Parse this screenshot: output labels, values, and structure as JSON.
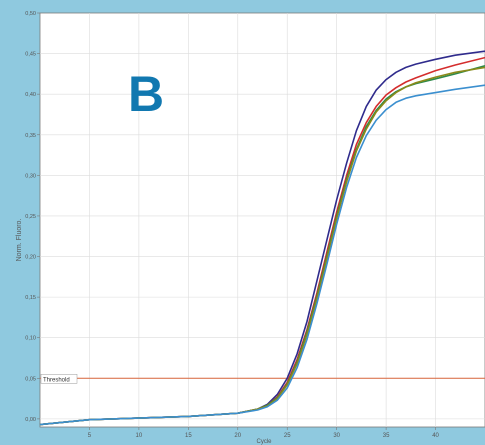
{
  "chart_data": {
    "type": "line",
    "panel_letter": "B",
    "title": "",
    "xlabel": "Cycle",
    "ylabel": "Norm. Fluoro.",
    "xlim": [
      0,
      45
    ],
    "ylim": [
      -0.01,
      0.5
    ],
    "x_ticks": [
      5,
      10,
      15,
      20,
      25,
      30,
      35,
      40
    ],
    "x_tick_labels": [
      "5",
      "10",
      "15",
      "20",
      "25",
      "30",
      "35",
      "40"
    ],
    "y_ticks": [
      0.0,
      0.05,
      0.1,
      0.15,
      0.2,
      0.25,
      0.3,
      0.35,
      0.4,
      0.45,
      0.5
    ],
    "y_tick_labels": [
      "0,00",
      "0,05",
      "0,10",
      "0,15",
      "0,20",
      "0,25",
      "0,30",
      "0,35",
      "0,40",
      "0,45",
      "0,50"
    ],
    "threshold": {
      "label": "Threshold",
      "value": 0.05,
      "color": "#d9663c"
    },
    "series": [
      {
        "color": "#2f2b8c",
        "x": [
          0,
          5,
          10,
          15,
          20,
          22,
          23,
          24,
          25,
          26,
          27,
          28,
          29,
          30,
          31,
          32,
          33,
          34,
          35,
          36,
          37,
          38,
          40,
          42,
          45
        ],
        "y": [
          -0.007,
          -0.001,
          0.001,
          0.003,
          0.007,
          0.012,
          0.018,
          0.03,
          0.05,
          0.08,
          0.12,
          0.17,
          0.22,
          0.27,
          0.315,
          0.355,
          0.385,
          0.405,
          0.418,
          0.427,
          0.433,
          0.437,
          0.443,
          0.448,
          0.453
        ]
      },
      {
        "color": "#d42d2d",
        "x": [
          0,
          5,
          10,
          15,
          20,
          22,
          23,
          24,
          25,
          26,
          27,
          28,
          29,
          30,
          31,
          32,
          33,
          34,
          35,
          36,
          37,
          38,
          40,
          42,
          45
        ],
        "y": [
          -0.007,
          -0.001,
          0.001,
          0.003,
          0.007,
          0.012,
          0.017,
          0.027,
          0.045,
          0.073,
          0.11,
          0.155,
          0.205,
          0.255,
          0.3,
          0.338,
          0.365,
          0.385,
          0.399,
          0.408,
          0.415,
          0.42,
          0.429,
          0.436,
          0.445
        ]
      },
      {
        "color": "#2e8a4a",
        "x": [
          0,
          5,
          10,
          15,
          20,
          22,
          23,
          24,
          25,
          26,
          27,
          28,
          29,
          30,
          31,
          32,
          33,
          34,
          35,
          36,
          37,
          38,
          40,
          42,
          45
        ],
        "y": [
          -0.007,
          -0.001,
          0.001,
          0.003,
          0.007,
          0.012,
          0.017,
          0.026,
          0.043,
          0.07,
          0.107,
          0.151,
          0.2,
          0.25,
          0.295,
          0.332,
          0.36,
          0.38,
          0.394,
          0.403,
          0.409,
          0.413,
          0.419,
          0.425,
          0.435
        ]
      },
      {
        "color": "#8a8a1a",
        "x": [
          0,
          5,
          10,
          15,
          20,
          22,
          23,
          24,
          25,
          26,
          27,
          28,
          29,
          30,
          31,
          32,
          33,
          34,
          35,
          36,
          37,
          38,
          40,
          42,
          45
        ],
        "y": [
          -0.007,
          -0.001,
          0.001,
          0.003,
          0.007,
          0.012,
          0.016,
          0.025,
          0.042,
          0.068,
          0.104,
          0.148,
          0.197,
          0.247,
          0.292,
          0.33,
          0.357,
          0.378,
          0.392,
          0.402,
          0.409,
          0.414,
          0.421,
          0.427,
          0.433
        ]
      },
      {
        "color": "#3b8fcf",
        "x": [
          0,
          5,
          10,
          15,
          20,
          22,
          23,
          24,
          25,
          26,
          27,
          28,
          29,
          30,
          31,
          32,
          33,
          34,
          35,
          36,
          37,
          38,
          40,
          42,
          45
        ],
        "y": [
          -0.007,
          -0.001,
          0.001,
          0.003,
          0.007,
          0.011,
          0.015,
          0.023,
          0.038,
          0.063,
          0.098,
          0.142,
          0.19,
          0.24,
          0.285,
          0.322,
          0.349,
          0.368,
          0.381,
          0.39,
          0.395,
          0.398,
          0.402,
          0.406,
          0.411
        ]
      }
    ]
  }
}
